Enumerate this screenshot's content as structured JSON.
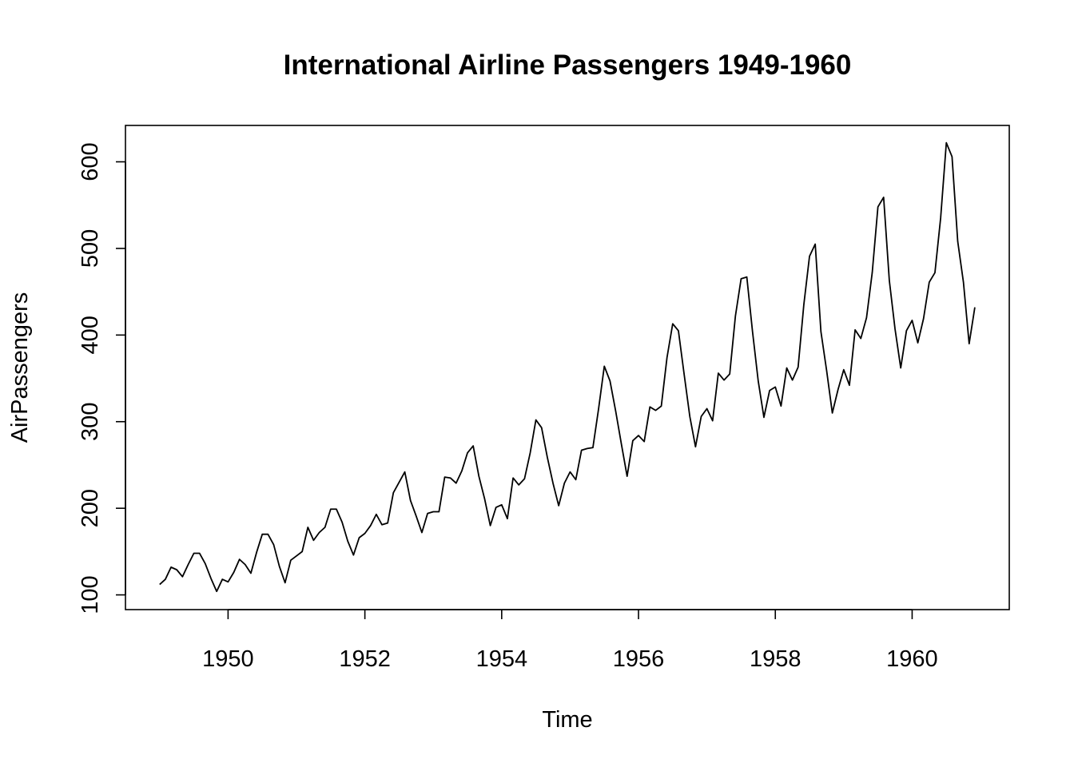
{
  "chart_data": {
    "type": "line",
    "title": "International Airline Passengers 1949-1960",
    "xlabel": "Time",
    "ylabel": "AirPassengers",
    "xlim": [
      1948.5,
      1961.42
    ],
    "ylim": [
      83,
      642
    ],
    "x_start": 1949,
    "x_step": 0.083333,
    "x_ticks": [
      1950,
      1952,
      1954,
      1956,
      1958,
      1960
    ],
    "y_ticks": [
      100,
      200,
      300,
      400,
      500,
      600
    ],
    "line_color": "#000000",
    "values": [
      112,
      118,
      132,
      129,
      121,
      135,
      148,
      148,
      136,
      119,
      104,
      118,
      115,
      126,
      141,
      135,
      125,
      149,
      170,
      170,
      158,
      133,
      114,
      140,
      145,
      150,
      178,
      163,
      172,
      178,
      199,
      199,
      184,
      162,
      146,
      166,
      171,
      180,
      193,
      181,
      183,
      218,
      230,
      242,
      209,
      191,
      172,
      194,
      196,
      196,
      236,
      235,
      229,
      243,
      264,
      272,
      237,
      211,
      180,
      201,
      204,
      188,
      235,
      227,
      234,
      264,
      302,
      293,
      259,
      229,
      203,
      229,
      242,
      233,
      267,
      269,
      270,
      315,
      364,
      347,
      312,
      274,
      237,
      278,
      284,
      277,
      317,
      313,
      318,
      374,
      413,
      405,
      355,
      306,
      271,
      306,
      315,
      301,
      356,
      348,
      355,
      422,
      465,
      467,
      404,
      347,
      305,
      336,
      340,
      318,
      362,
      348,
      363,
      435,
      491,
      505,
      404,
      359,
      310,
      337,
      360,
      342,
      406,
      396,
      420,
      472,
      548,
      559,
      463,
      407,
      362,
      405,
      417,
      391,
      419,
      461,
      472,
      535,
      622,
      606,
      508,
      461,
      390,
      432
    ]
  }
}
